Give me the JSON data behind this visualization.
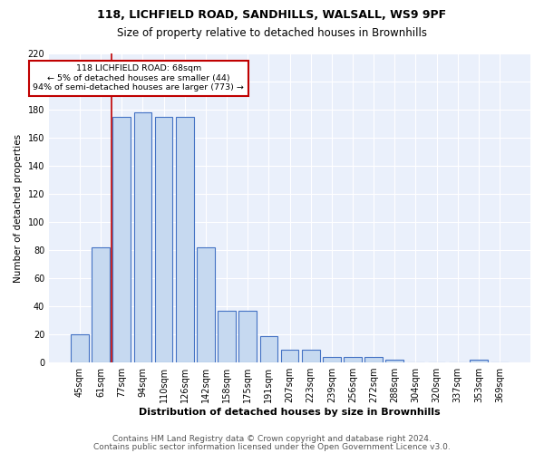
{
  "title": "118, LICHFIELD ROAD, SANDHILLS, WALSALL, WS9 9PF",
  "subtitle": "Size of property relative to detached houses in Brownhills",
  "xlabel": "Distribution of detached houses by size in Brownhills",
  "ylabel": "Number of detached properties",
  "categories": [
    "45sqm",
    "61sqm",
    "77sqm",
    "94sqm",
    "110sqm",
    "126sqm",
    "142sqm",
    "158sqm",
    "175sqm",
    "191sqm",
    "207sqm",
    "223sqm",
    "239sqm",
    "256sqm",
    "272sqm",
    "288sqm",
    "304sqm",
    "320sqm",
    "337sqm",
    "353sqm",
    "369sqm"
  ],
  "values": [
    20,
    82,
    175,
    178,
    175,
    175,
    82,
    37,
    37,
    19,
    9,
    9,
    4,
    4,
    4,
    2,
    0,
    0,
    0,
    2,
    0
  ],
  "bar_color": "#c6d9f0",
  "bar_edge_color": "#4472c4",
  "annotation_text": "118 LICHFIELD ROAD: 68sqm\n← 5% of detached houses are smaller (44)\n94% of semi-detached houses are larger (773) →",
  "annotation_box_color": "#ffffff",
  "annotation_box_edge": "#c00000",
  "vline_color": "#c00000",
  "ylim": [
    0,
    220
  ],
  "yticks": [
    0,
    20,
    40,
    60,
    80,
    100,
    120,
    140,
    160,
    180,
    200,
    220
  ],
  "footer1": "Contains HM Land Registry data © Crown copyright and database right 2024.",
  "footer2": "Contains public sector information licensed under the Open Government Licence v3.0.",
  "bg_color": "#eaf0fb",
  "grid_color": "#ffffff",
  "title_fontsize": 9,
  "subtitle_fontsize": 8.5,
  "xlabel_fontsize": 8,
  "ylabel_fontsize": 7.5,
  "tick_fontsize": 7,
  "footer_fontsize": 6.5
}
